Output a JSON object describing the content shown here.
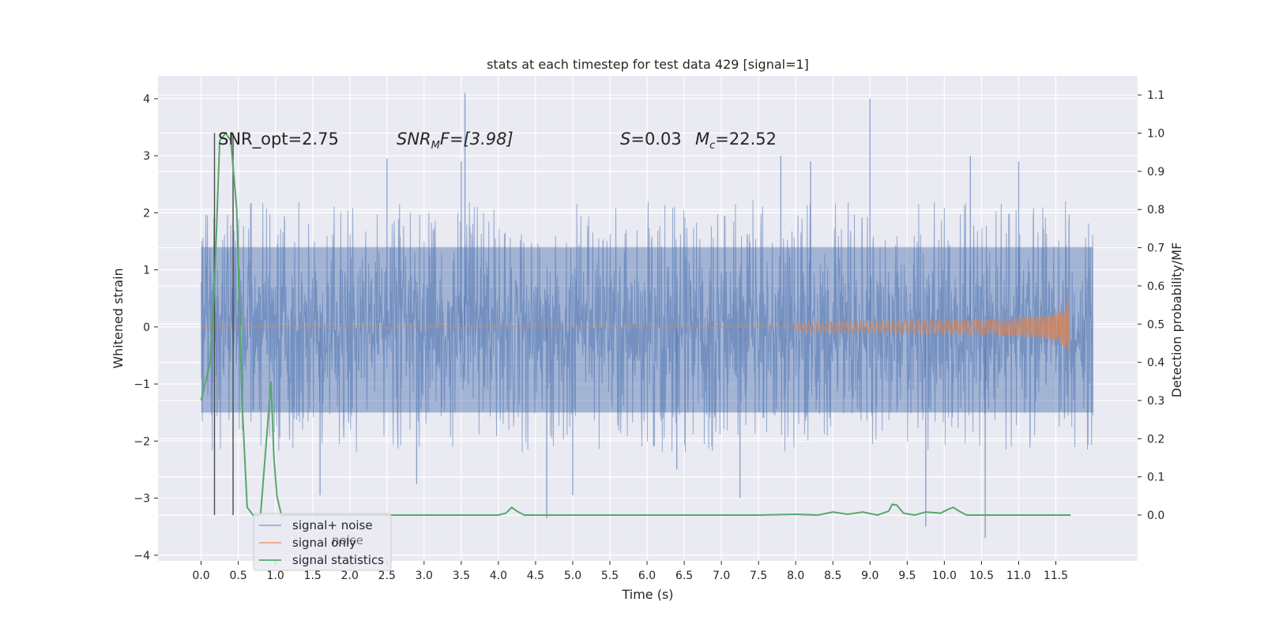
{
  "chart_data": {
    "type": "line",
    "title": "stats at each timestep for test data 429 [signal=1]",
    "xlabel": "Time (s)",
    "ylabel": "Whitened strain",
    "y2label": "Detection probability/MF",
    "xlim": [
      -0.58,
      12.6
    ],
    "ylim": [
      -4.1,
      4.4
    ],
    "y2lim": [
      -0.12,
      1.15
    ],
    "xticks": [
      0.0,
      0.5,
      1.0,
      1.5,
      2.0,
      2.5,
      3.0,
      3.5,
      4.0,
      4.5,
      5.0,
      5.5,
      6.0,
      6.5,
      7.0,
      7.5,
      8.0,
      8.5,
      9.0,
      9.5,
      10.0,
      10.5,
      11.0,
      11.5
    ],
    "xtick_labels": [
      "0.0",
      "0.5",
      "1.0",
      "1.5",
      "2.0",
      "2.5",
      "3.0",
      "3.5",
      "4.0",
      "4.5",
      "5.0",
      "5.5",
      "6.0",
      "6.5",
      "7.0",
      "7.5",
      "8.0",
      "8.5",
      "9.0",
      "9.5",
      "10.0",
      "10.5",
      "11.0",
      "11.5"
    ],
    "yticks": [
      -4,
      -3,
      -2,
      -1,
      0,
      1,
      2,
      3,
      4
    ],
    "ytick_labels": [
      "−4",
      "−3",
      "−2",
      "−1",
      "0",
      "1",
      "2",
      "3",
      "4"
    ],
    "y2ticks": [
      0.0,
      0.1,
      0.2,
      0.3,
      0.4,
      0.5,
      0.6,
      0.7,
      0.8,
      0.9,
      1.0,
      1.1
    ],
    "y2tick_labels": [
      "0.0",
      "0.1",
      "0.2",
      "0.3",
      "0.4",
      "0.5",
      "0.6",
      "0.7",
      "0.8",
      "0.9",
      "1.0",
      "1.1"
    ],
    "grid": true,
    "legend_position": "lower-left",
    "annotations": {
      "snr_opt": "SNR_opt=2.75",
      "snr_mf_main": "SNR",
      "snr_mf_sub": "M",
      "snr_mf_rest": "F=[3.98]",
      "s_var": "S",
      "s_val": "=0.03",
      "mc_var": "M",
      "mc_sub": "c",
      "mc_val": "=22.52"
    },
    "series": [
      {
        "name": "signal+ noise",
        "color": "#4c72b0",
        "axis": "left",
        "x_range": [
          0.0,
          12.0
        ],
        "band_envelope": {
          "core_low": -1.5,
          "core_high": 1.4,
          "typical_peak_high": 2.0,
          "typical_peak_low": -2.0
        },
        "spikes": [
          {
            "x": 3.55,
            "y": 4.1
          },
          {
            "x": 9.0,
            "y": 4.0
          },
          {
            "x": 2.5,
            "y": 2.95
          },
          {
            "x": 3.5,
            "y": 2.9
          },
          {
            "x": 4.65,
            "y": -3.35
          },
          {
            "x": 10.55,
            "y": -3.7
          },
          {
            "x": 9.75,
            "y": -3.5
          },
          {
            "x": 7.25,
            "y": -3.0
          },
          {
            "x": 5.0,
            "y": -2.95
          },
          {
            "x": 1.6,
            "y": -2.95
          },
          {
            "x": 6.4,
            "y": -2.5
          },
          {
            "x": 8.2,
            "y": 2.9
          },
          {
            "x": 7.8,
            "y": 3.0
          },
          {
            "x": 10.35,
            "y": 3.0
          },
          {
            "x": 11.0,
            "y": 2.9
          },
          {
            "x": 2.9,
            "y": -2.75
          }
        ]
      },
      {
        "name": "signal only",
        "color": "#dd8452",
        "axis": "left",
        "x_range": [
          0.0,
          11.7
        ],
        "chirp_end": 11.7,
        "peak_amplitude": 0.58
      },
      {
        "name": "signal statistics",
        "color": "#55a868",
        "axis": "right",
        "points": [
          [
            0.0,
            0.3
          ],
          [
            0.12,
            0.4
          ],
          [
            0.18,
            0.6
          ],
          [
            0.25,
            0.98
          ],
          [
            0.33,
            1.0
          ],
          [
            0.4,
            0.98
          ],
          [
            0.48,
            0.8
          ],
          [
            0.55,
            0.3
          ],
          [
            0.62,
            0.02
          ],
          [
            0.7,
            0.0
          ],
          [
            0.8,
            0.0
          ],
          [
            0.88,
            0.2
          ],
          [
            0.94,
            0.35
          ],
          [
            0.98,
            0.15
          ],
          [
            1.02,
            0.05
          ],
          [
            1.08,
            0.0
          ],
          [
            1.5,
            0.0
          ],
          [
            2.0,
            0.0
          ],
          [
            3.0,
            0.0
          ],
          [
            4.0,
            0.0
          ],
          [
            4.1,
            0.005
          ],
          [
            4.18,
            0.02
          ],
          [
            4.25,
            0.01
          ],
          [
            4.35,
            0.0
          ],
          [
            4.5,
            0.0
          ],
          [
            6.0,
            0.0
          ],
          [
            7.5,
            0.0
          ],
          [
            8.0,
            0.002
          ],
          [
            8.3,
            0.0
          ],
          [
            8.5,
            0.008
          ],
          [
            8.7,
            0.002
          ],
          [
            8.9,
            0.008
          ],
          [
            9.1,
            0.0
          ],
          [
            9.25,
            0.01
          ],
          [
            9.3,
            0.028
          ],
          [
            9.36,
            0.026
          ],
          [
            9.45,
            0.005
          ],
          [
            9.6,
            0.0
          ],
          [
            9.75,
            0.008
          ],
          [
            9.95,
            0.005
          ],
          [
            10.05,
            0.015
          ],
          [
            10.12,
            0.02
          ],
          [
            10.2,
            0.01
          ],
          [
            10.3,
            0.0
          ],
          [
            11.0,
            0.0
          ],
          [
            11.5,
            0.0
          ],
          [
            11.7,
            0.0
          ]
        ]
      }
    ],
    "vertical_markers": [
      0.18,
      0.43
    ],
    "legend_extra": "noise"
  }
}
